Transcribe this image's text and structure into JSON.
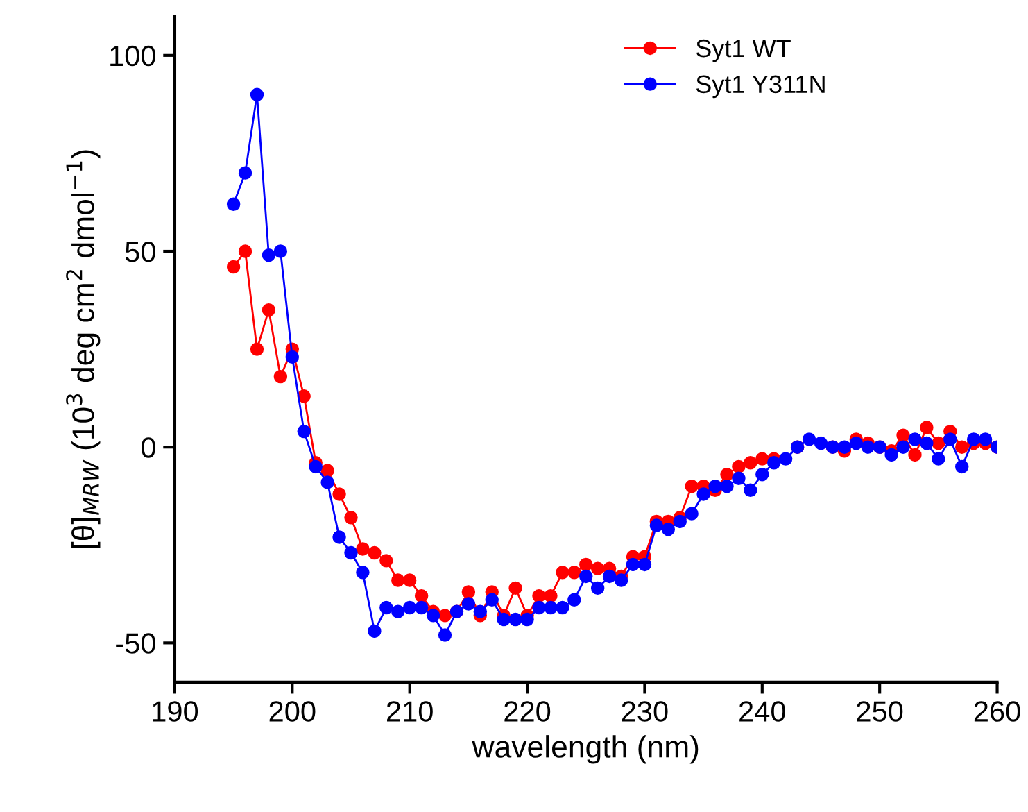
{
  "chart_data": {
    "type": "line",
    "xlabel": "wavelength (nm)",
    "ylabel": "[θ]$_{MRW}$ (10$^{3}$ deg cm$^{2}$ dmol$^{−1}$)",
    "x": [
      195,
      196,
      197,
      198,
      199,
      200,
      201,
      202,
      203,
      204,
      205,
      206,
      207,
      208,
      209,
      210,
      211,
      212,
      213,
      214,
      215,
      216,
      217,
      218,
      219,
      220,
      221,
      222,
      223,
      224,
      225,
      226,
      227,
      228,
      229,
      230,
      231,
      232,
      233,
      234,
      235,
      236,
      237,
      238,
      239,
      240,
      241,
      242,
      243,
      244,
      245,
      246,
      247,
      248,
      249,
      250,
      251,
      252,
      253,
      254,
      255,
      256,
      257,
      258,
      259,
      260
    ],
    "series": [
      {
        "name": "Syt1 WT",
        "color": "#ff0000",
        "values": [
          46,
          50,
          25,
          35,
          18,
          25,
          13,
          -4,
          -6,
          -12,
          -18,
          -26,
          -27,
          -29,
          -34,
          -34,
          -38,
          -42,
          -43,
          -42,
          -37,
          -43,
          -37,
          -43,
          -36,
          -43,
          -38,
          -38,
          -32,
          -32,
          -30,
          -31,
          -31,
          -33,
          -28,
          -28,
          -19,
          -19,
          -18,
          -10,
          -10,
          -11,
          -7,
          -5,
          -4,
          -3,
          -3,
          null,
          0,
          null,
          null,
          0,
          -1,
          2,
          1,
          0,
          -1,
          3,
          -2,
          5,
          1,
          4,
          0,
          1,
          1,
          0
        ]
      },
      {
        "name": "Syt1 Y311N",
        "color": "#0000ff",
        "values": [
          62,
          70,
          90,
          49,
          50,
          23,
          4,
          -5,
          -9,
          -23,
          -27,
          -32,
          -47,
          -41,
          -42,
          -41,
          -41,
          -43,
          -48,
          -42,
          -40,
          -42,
          -39,
          -44,
          -44,
          -44,
          -41,
          -41,
          -41,
          -39,
          -33,
          -36,
          -33,
          -34,
          -30,
          -30,
          -20,
          -21,
          -19,
          -17,
          -12,
          -10,
          -10,
          -8,
          -11,
          -7,
          -4,
          -3,
          0,
          2,
          1,
          0,
          0,
          1,
          0,
          0,
          -2,
          0,
          2,
          1,
          -3,
          2,
          -5,
          2,
          2,
          0
        ]
      }
    ],
    "xlim": [
      190,
      260
    ],
    "ylim": [
      -60,
      110
    ],
    "xticks": [
      190,
      200,
      210,
      220,
      230,
      240,
      250,
      260
    ],
    "yticks": [
      -50,
      0,
      50,
      100
    ],
    "grid": false,
    "legend": "top right",
    "marker": "circle",
    "line_style": "solid"
  }
}
